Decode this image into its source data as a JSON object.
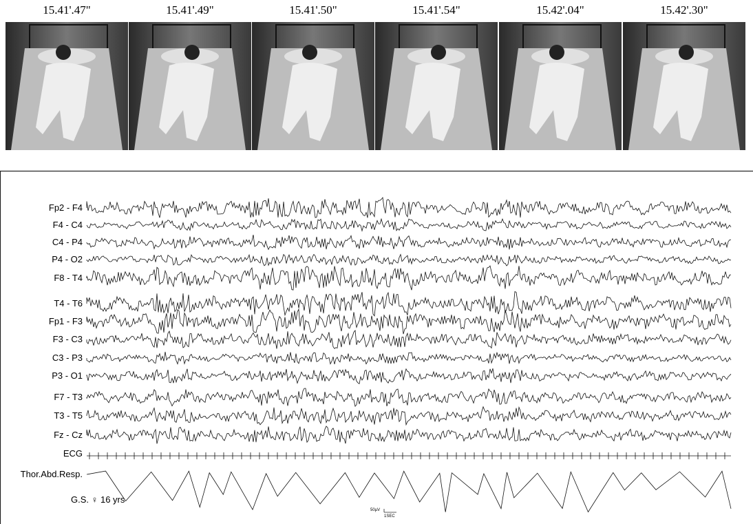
{
  "photos": {
    "timestamps": [
      "15.41'.47\"",
      "15.41'.49\"",
      "15.41'.50\"",
      "15.41'.54\"",
      "15.42'.04\"",
      "15.42'.30\""
    ]
  },
  "eeg": {
    "channels": [
      "Fp2 - F4",
      "F4 - C4",
      "C4 - P4",
      "P4 - O2",
      "F8 - T4",
      "T4 - T6",
      "Fp1 - F3",
      "F3 - C3",
      "C3 - P3",
      "P3 - O1",
      "F7 - T3",
      "T3 - T5",
      "Fz - Cz",
      "ECG",
      "Thor.Abd.Resp."
    ],
    "subject": "G.S. ♀ 16 yrs",
    "scale_amplitude": "50µV",
    "scale_time": "1SEC"
  }
}
